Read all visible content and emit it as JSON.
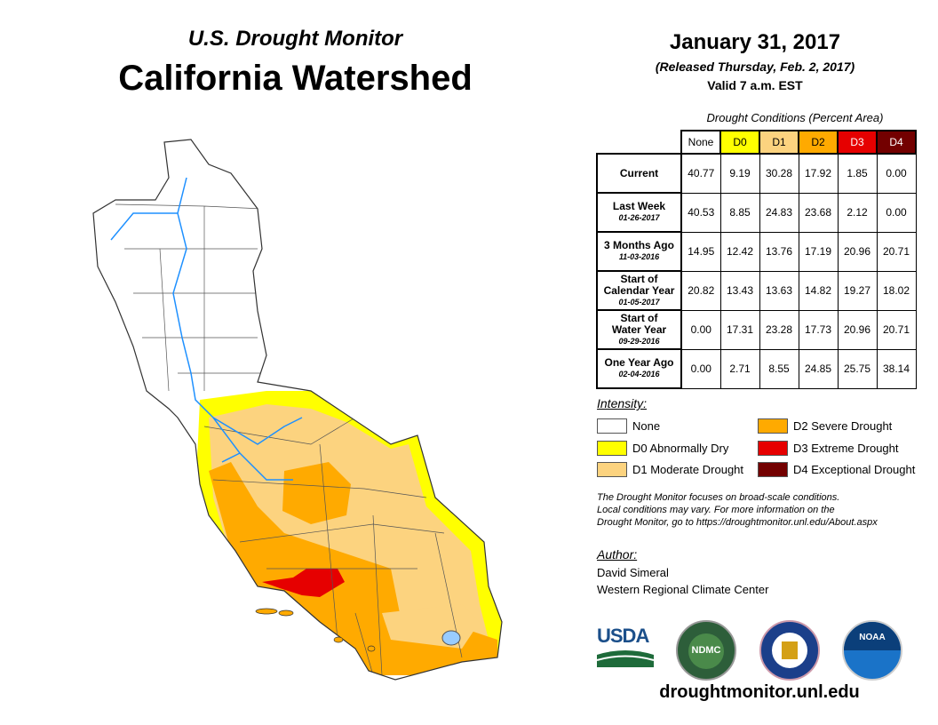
{
  "header": {
    "subtitle": "U.S. Drought Monitor",
    "title": "California Watershed",
    "date": "January 31, 2017",
    "released": "(Released Thursday, Feb. 2, 2017)",
    "valid": "Valid 7 a.m. EST"
  },
  "table": {
    "caption": "Drought Conditions (Percent Area)",
    "columns": [
      "None",
      "D0",
      "D1",
      "D2",
      "D3",
      "D4"
    ],
    "rows": [
      {
        "label": "Current",
        "label2": "",
        "date": "",
        "values": [
          "40.77",
          "9.19",
          "30.28",
          "17.92",
          "1.85",
          "0.00"
        ]
      },
      {
        "label": "Last Week",
        "label2": "",
        "date": "01-26-2017",
        "values": [
          "40.53",
          "8.85",
          "24.83",
          "23.68",
          "2.12",
          "0.00"
        ]
      },
      {
        "label": "3 Months Ago",
        "label2": "",
        "date": "11-03-2016",
        "values": [
          "14.95",
          "12.42",
          "13.76",
          "17.19",
          "20.96",
          "20.71"
        ]
      },
      {
        "label": "Start of",
        "label2": "Calendar Year",
        "date": "01-05-2017",
        "values": [
          "20.82",
          "13.43",
          "13.63",
          "14.82",
          "19.27",
          "18.02"
        ]
      },
      {
        "label": "Start of",
        "label2": "Water Year",
        "date": "09-29-2016",
        "values": [
          "0.00",
          "17.31",
          "23.28",
          "17.73",
          "20.96",
          "20.71"
        ]
      },
      {
        "label": "One Year Ago",
        "label2": "",
        "date": "02-04-2016",
        "values": [
          "0.00",
          "2.71",
          "8.55",
          "24.85",
          "25.75",
          "38.14"
        ]
      }
    ]
  },
  "legend": {
    "title": "Intensity:",
    "items": [
      {
        "label": "None",
        "color": "#ffffff"
      },
      {
        "label": "D0 Abnormally Dry",
        "color": "#ffff00"
      },
      {
        "label": "D1 Moderate Drought",
        "color": "#fcd37f"
      },
      {
        "label": "D2 Severe Drought",
        "color": "#ffaa00"
      },
      {
        "label": "D3 Extreme Drought",
        "color": "#e60000"
      },
      {
        "label": "D4 Exceptional Drought",
        "color": "#730000"
      }
    ]
  },
  "note": [
    "The Drought Monitor focuses on broad-scale conditions.",
    "Local conditions may vary. For more information on the",
    "Drought Monitor, go to https://droughtmonitor.unl.edu/About.aspx"
  ],
  "author": {
    "title": "Author:",
    "name": "David Simeral",
    "org": "Western Regional Climate Center"
  },
  "logos": {
    "usda": "USDA",
    "ndmc": "NDMC",
    "noaa": "NOAA"
  },
  "url": "droughtmonitor.unl.edu"
}
